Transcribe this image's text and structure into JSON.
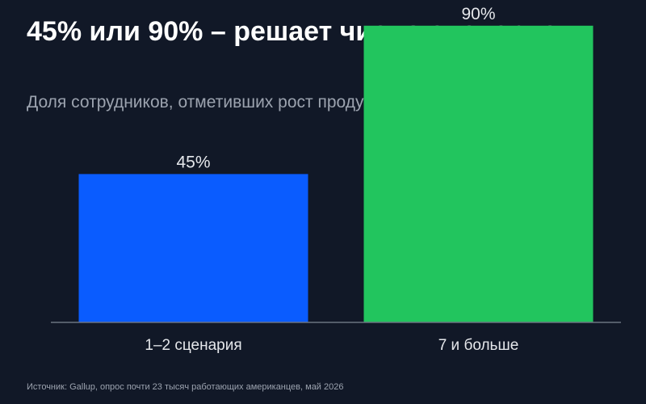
{
  "title": "45% или 90% – решает число сценариев",
  "subtitle": "Доля сотрудников, отметивших рост продуктивности от ИИ",
  "source": "Источник: Gallup, опрос почти 23 тысяч работающих американцев, май 2026",
  "chart_data": {
    "type": "bar",
    "title": "45% или 90% – решает число сценариев",
    "subtitle": "Доля сотрудников, отметивших рост продуктивности от ИИ",
    "categories": [
      "1–2 сценария",
      "7 и больше"
    ],
    "values": [
      45,
      90
    ],
    "value_labels": [
      "45%",
      "90%"
    ],
    "colors": [
      "#0a5cff",
      "#22c55e"
    ],
    "unit": "%",
    "ylim": [
      0,
      100
    ],
    "grid": false,
    "legend": "none",
    "xlabel": "",
    "ylabel": ""
  },
  "colors": {
    "background": "#111827",
    "text": "#ffffff",
    "muted_text": "#9ca3af",
    "axis": "#6b7280"
  }
}
